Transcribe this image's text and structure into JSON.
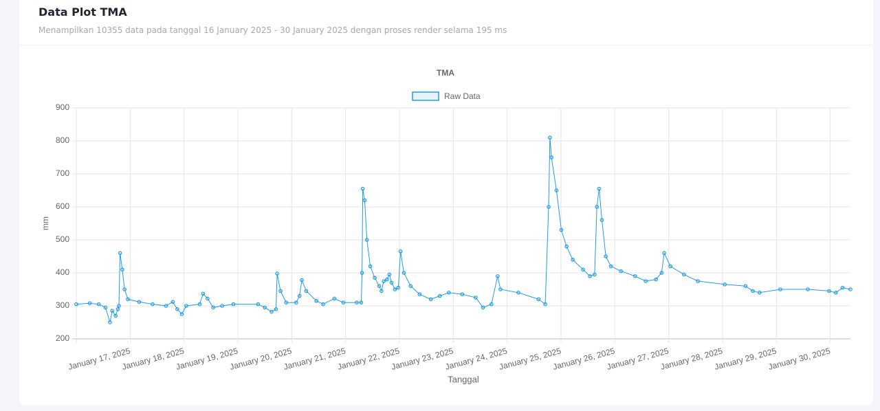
{
  "header": {
    "title": "Data Plot TMA",
    "subtitle": "Menampilkan 10355 data pada tanggal 16 January 2025 - 30 January 2025 dengan proses render selama 195 ms"
  },
  "chart_data": {
    "type": "line",
    "title": "TMA",
    "xlabel": "Tanggal",
    "ylabel": "mm",
    "grid": true,
    "legend": "top",
    "xlim": [
      "2025-01-16T00:00",
      "2025-01-30T09:00"
    ],
    "xticks": [
      {
        "value": "2025-01-17T00:00",
        "label": "January 17, 2025"
      },
      {
        "value": "2025-01-18T00:00",
        "label": "January 18, 2025"
      },
      {
        "value": "2025-01-19T00:00",
        "label": "January 19, 2025"
      },
      {
        "value": "2025-01-20T00:00",
        "label": "January 20, 2025"
      },
      {
        "value": "2025-01-21T00:00",
        "label": "January 21, 2025"
      },
      {
        "value": "2025-01-22T00:00",
        "label": "January 22, 2025"
      },
      {
        "value": "2025-01-23T00:00",
        "label": "January 23, 2025"
      },
      {
        "value": "2025-01-24T00:00",
        "label": "January 24, 2025"
      },
      {
        "value": "2025-01-25T00:00",
        "label": "January 25, 2025"
      },
      {
        "value": "2025-01-26T00:00",
        "label": "January 26, 2025"
      },
      {
        "value": "2025-01-27T00:00",
        "label": "January 27, 2025"
      },
      {
        "value": "2025-01-28T00:00",
        "label": "January 28, 2025"
      },
      {
        "value": "2025-01-29T00:00",
        "label": "January 29, 2025"
      },
      {
        "value": "2025-01-30T00:00",
        "label": "January 30, 2025"
      }
    ],
    "ylim": [
      200,
      900
    ],
    "yticks": [
      200,
      300,
      400,
      500,
      600,
      700,
      800,
      900
    ],
    "x": [
      "2025-01-16T00:00",
      "2025-01-16T06:00",
      "2025-01-16T10:00",
      "2025-01-16T13:00",
      "2025-01-16T15:00",
      "2025-01-16T16:00",
      "2025-01-16T17:30",
      "2025-01-16T18:30",
      "2025-01-16T19:00",
      "2025-01-16T19:30",
      "2025-01-16T20:30",
      "2025-01-16T21:30",
      "2025-01-16T23:00",
      "2025-01-17T04:00",
      "2025-01-17T10:00",
      "2025-01-17T16:00",
      "2025-01-17T19:00",
      "2025-01-17T21:00",
      "2025-01-17T23:00",
      "2025-01-18T01:00",
      "2025-01-18T07:00",
      "2025-01-18T08:30",
      "2025-01-18T10:30",
      "2025-01-18T13:00",
      "2025-01-18T17:00",
      "2025-01-18T22:00",
      "2025-01-19T09:00",
      "2025-01-19T12:00",
      "2025-01-19T15:00",
      "2025-01-19T17:00",
      "2025-01-19T17:30",
      "2025-01-19T19:00",
      "2025-01-19T21:30",
      "2025-01-20T02:00",
      "2025-01-20T03:30",
      "2025-01-20T04:30",
      "2025-01-20T06:30",
      "2025-01-20T11:00",
      "2025-01-20T14:00",
      "2025-01-20T19:00",
      "2025-01-20T23:00",
      "2025-01-21T05:00",
      "2025-01-21T07:00",
      "2025-01-21T07:20",
      "2025-01-21T07:40",
      "2025-01-21T08:30",
      "2025-01-21T09:30",
      "2025-01-21T11:00",
      "2025-01-21T13:00",
      "2025-01-21T15:00",
      "2025-01-21T16:00",
      "2025-01-21T17:00",
      "2025-01-21T18:30",
      "2025-01-21T19:30",
      "2025-01-21T20:30",
      "2025-01-21T22:00",
      "2025-01-21T23:30",
      "2025-01-22T00:30",
      "2025-01-22T02:00",
      "2025-01-22T05:00",
      "2025-01-22T09:00",
      "2025-01-22T14:00",
      "2025-01-22T18:00",
      "2025-01-22T22:00",
      "2025-01-23T04:00",
      "2025-01-23T10:00",
      "2025-01-23T13:15",
      "2025-01-23T17:00",
      "2025-01-23T19:45",
      "2025-01-23T21:00",
      "2025-01-24T05:00",
      "2025-01-24T14:00",
      "2025-01-24T17:00",
      "2025-01-24T18:30",
      "2025-01-24T19:05",
      "2025-01-24T19:45",
      "2025-01-24T22:00",
      "2025-01-25T00:10",
      "2025-01-25T02:30",
      "2025-01-25T05:15",
      "2025-01-25T09:50",
      "2025-01-25T12:55",
      "2025-01-25T15:00",
      "2025-01-25T16:00",
      "2025-01-25T17:00",
      "2025-01-25T18:15",
      "2025-01-25T20:00",
      "2025-01-25T22:15",
      "2025-01-26T02:45",
      "2025-01-26T09:00",
      "2025-01-26T13:45",
      "2025-01-26T18:20",
      "2025-01-26T20:50",
      "2025-01-26T22:00",
      "2025-01-27T00:45",
      "2025-01-27T06:50",
      "2025-01-27T13:00",
      "2025-01-28T01:00",
      "2025-01-28T10:15",
      "2025-01-28T13:30",
      "2025-01-28T16:30",
      "2025-01-29T01:45",
      "2025-01-29T14:00",
      "2025-01-29T23:30",
      "2025-01-30T02:30",
      "2025-01-30T05:30",
      "2025-01-30T09:00"
    ],
    "series": [
      {
        "name": "Raw Data",
        "color": "#1e9be9",
        "values": [
          305,
          308,
          305,
          295,
          250,
          285,
          270,
          290,
          300,
          460,
          410,
          350,
          320,
          312,
          305,
          300,
          312,
          290,
          275,
          300,
          305,
          337,
          322,
          295,
          300,
          305,
          305,
          295,
          282,
          290,
          398,
          345,
          310,
          310,
          330,
          378,
          345,
          315,
          305,
          322,
          310,
          310,
          310,
          400,
          655,
          620,
          500,
          420,
          385,
          360,
          345,
          375,
          380,
          395,
          370,
          350,
          355,
          465,
          400,
          360,
          335,
          320,
          330,
          340,
          335,
          325,
          295,
          305,
          390,
          350,
          340,
          320,
          305,
          600,
          810,
          750,
          650,
          530,
          480,
          440,
          410,
          390,
          395,
          600,
          655,
          560,
          450,
          420,
          405,
          390,
          375,
          380,
          400,
          460,
          420,
          395,
          375,
          365,
          360,
          345,
          340,
          350,
          350,
          345,
          340,
          355,
          350
        ]
      }
    ]
  }
}
